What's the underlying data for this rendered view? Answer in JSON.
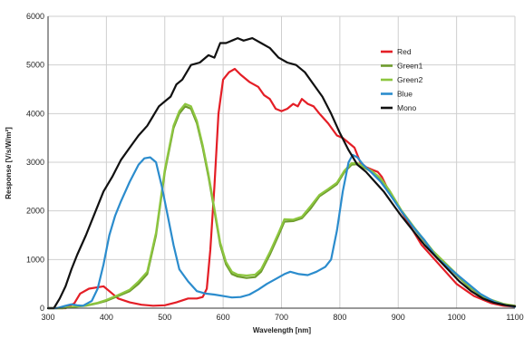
{
  "chart_data": {
    "type": "line",
    "title": "",
    "xlabel": "Wavelength [nm]",
    "ylabel": "Response [V/s/W/m²]",
    "xlim": [
      300,
      1100
    ],
    "ylim": [
      0,
      6000
    ],
    "x_ticks": [
      300,
      400,
      500,
      600,
      700,
      800,
      900,
      1000,
      1100
    ],
    "y_ticks": [
      0,
      1000,
      2000,
      3000,
      4000,
      5000,
      6000
    ],
    "grid": true,
    "legend_position": "top-right",
    "series": [
      {
        "name": "Red",
        "color": "#e41e26",
        "points": [
          [
            300,
            0
          ],
          [
            330,
            0
          ],
          [
            345,
            100
          ],
          [
            355,
            300
          ],
          [
            370,
            400
          ],
          [
            385,
            430
          ],
          [
            395,
            450
          ],
          [
            405,
            350
          ],
          [
            420,
            200
          ],
          [
            440,
            120
          ],
          [
            460,
            70
          ],
          [
            480,
            50
          ],
          [
            500,
            60
          ],
          [
            520,
            120
          ],
          [
            540,
            200
          ],
          [
            555,
            200
          ],
          [
            565,
            230
          ],
          [
            572,
            400
          ],
          [
            578,
            1200
          ],
          [
            585,
            2500
          ],
          [
            592,
            4000
          ],
          [
            600,
            4700
          ],
          [
            610,
            4850
          ],
          [
            620,
            4920
          ],
          [
            630,
            4800
          ],
          [
            645,
            4650
          ],
          [
            660,
            4550
          ],
          [
            670,
            4380
          ],
          [
            680,
            4300
          ],
          [
            690,
            4100
          ],
          [
            700,
            4050
          ],
          [
            710,
            4100
          ],
          [
            720,
            4200
          ],
          [
            728,
            4150
          ],
          [
            735,
            4300
          ],
          [
            745,
            4200
          ],
          [
            755,
            4150
          ],
          [
            765,
            4000
          ],
          [
            780,
            3800
          ],
          [
            795,
            3550
          ],
          [
            805,
            3500
          ],
          [
            815,
            3400
          ],
          [
            825,
            3300
          ],
          [
            835,
            3000
          ],
          [
            845,
            2900
          ],
          [
            855,
            2850
          ],
          [
            865,
            2800
          ],
          [
            872,
            2700
          ],
          [
            880,
            2500
          ],
          [
            895,
            2200
          ],
          [
            915,
            1800
          ],
          [
            940,
            1300
          ],
          [
            970,
            900
          ],
          [
            1000,
            500
          ],
          [
            1030,
            250
          ],
          [
            1060,
            100
          ],
          [
            1080,
            50
          ],
          [
            1100,
            30
          ]
        ]
      },
      {
        "name": "Green1",
        "color": "#6e9c2d",
        "points": [
          [
            300,
            0
          ],
          [
            325,
            0
          ],
          [
            345,
            30
          ],
          [
            365,
            50
          ],
          [
            385,
            100
          ],
          [
            400,
            150
          ],
          [
            420,
            250
          ],
          [
            440,
            350
          ],
          [
            455,
            500
          ],
          [
            470,
            700
          ],
          [
            485,
            1500
          ],
          [
            500,
            2800
          ],
          [
            515,
            3700
          ],
          [
            525,
            4000
          ],
          [
            535,
            4150
          ],
          [
            545,
            4100
          ],
          [
            555,
            3800
          ],
          [
            565,
            3300
          ],
          [
            575,
            2700
          ],
          [
            585,
            2000
          ],
          [
            595,
            1300
          ],
          [
            605,
            900
          ],
          [
            615,
            700
          ],
          [
            625,
            650
          ],
          [
            640,
            620
          ],
          [
            655,
            640
          ],
          [
            665,
            750
          ],
          [
            680,
            1100
          ],
          [
            695,
            1500
          ],
          [
            705,
            1780
          ],
          [
            720,
            1790
          ],
          [
            735,
            1850
          ],
          [
            750,
            2050
          ],
          [
            765,
            2300
          ],
          [
            780,
            2420
          ],
          [
            795,
            2550
          ],
          [
            808,
            2800
          ],
          [
            820,
            2950
          ],
          [
            830,
            2960
          ],
          [
            840,
            2900
          ],
          [
            855,
            2800
          ],
          [
            870,
            2650
          ],
          [
            885,
            2400
          ],
          [
            905,
            2000
          ],
          [
            930,
            1600
          ],
          [
            960,
            1150
          ],
          [
            990,
            800
          ],
          [
            1020,
            450
          ],
          [
            1050,
            200
          ],
          [
            1080,
            80
          ],
          [
            1100,
            40
          ]
        ]
      },
      {
        "name": "Green2",
        "color": "#8dc63f",
        "points": [
          [
            300,
            0
          ],
          [
            325,
            0
          ],
          [
            345,
            30
          ],
          [
            365,
            60
          ],
          [
            385,
            110
          ],
          [
            400,
            170
          ],
          [
            420,
            270
          ],
          [
            440,
            380
          ],
          [
            455,
            550
          ],
          [
            470,
            750
          ],
          [
            485,
            1550
          ],
          [
            500,
            2850
          ],
          [
            515,
            3750
          ],
          [
            525,
            4050
          ],
          [
            535,
            4200
          ],
          [
            545,
            4150
          ],
          [
            555,
            3850
          ],
          [
            565,
            3350
          ],
          [
            575,
            2750
          ],
          [
            585,
            2050
          ],
          [
            595,
            1350
          ],
          [
            605,
            950
          ],
          [
            615,
            750
          ],
          [
            625,
            690
          ],
          [
            640,
            670
          ],
          [
            655,
            690
          ],
          [
            665,
            800
          ],
          [
            680,
            1150
          ],
          [
            695,
            1550
          ],
          [
            705,
            1830
          ],
          [
            720,
            1820
          ],
          [
            735,
            1880
          ],
          [
            750,
            2100
          ],
          [
            765,
            2330
          ],
          [
            780,
            2450
          ],
          [
            795,
            2580
          ],
          [
            808,
            2830
          ],
          [
            820,
            2980
          ],
          [
            830,
            2980
          ],
          [
            840,
            2920
          ],
          [
            855,
            2820
          ],
          [
            870,
            2670
          ],
          [
            885,
            2420
          ],
          [
            905,
            2020
          ],
          [
            930,
            1620
          ],
          [
            960,
            1170
          ],
          [
            990,
            820
          ],
          [
            1020,
            470
          ],
          [
            1050,
            210
          ],
          [
            1080,
            90
          ],
          [
            1100,
            50
          ]
        ]
      },
      {
        "name": "Blue",
        "color": "#2b8ccd",
        "points": [
          [
            300,
            0
          ],
          [
            315,
            0
          ],
          [
            330,
            50
          ],
          [
            340,
            80
          ],
          [
            350,
            60
          ],
          [
            360,
            50
          ],
          [
            375,
            150
          ],
          [
            385,
            400
          ],
          [
            395,
            900
          ],
          [
            405,
            1500
          ],
          [
            415,
            1900
          ],
          [
            425,
            2200
          ],
          [
            440,
            2600
          ],
          [
            455,
            2950
          ],
          [
            465,
            3080
          ],
          [
            475,
            3100
          ],
          [
            485,
            3000
          ],
          [
            495,
            2500
          ],
          [
            505,
            1900
          ],
          [
            515,
            1300
          ],
          [
            525,
            800
          ],
          [
            540,
            550
          ],
          [
            555,
            350
          ],
          [
            570,
            300
          ],
          [
            585,
            280
          ],
          [
            600,
            250
          ],
          [
            615,
            220
          ],
          [
            630,
            230
          ],
          [
            645,
            280
          ],
          [
            660,
            380
          ],
          [
            675,
            500
          ],
          [
            690,
            600
          ],
          [
            705,
            700
          ],
          [
            715,
            750
          ],
          [
            730,
            700
          ],
          [
            745,
            680
          ],
          [
            760,
            750
          ],
          [
            775,
            850
          ],
          [
            785,
            1000
          ],
          [
            795,
            1600
          ],
          [
            805,
            2400
          ],
          [
            815,
            3000
          ],
          [
            822,
            3150
          ],
          [
            830,
            3100
          ],
          [
            840,
            2950
          ],
          [
            855,
            2780
          ],
          [
            870,
            2600
          ],
          [
            885,
            2350
          ],
          [
            905,
            2000
          ],
          [
            925,
            1680
          ],
          [
            945,
            1400
          ],
          [
            965,
            1050
          ],
          [
            990,
            800
          ],
          [
            1015,
            550
          ],
          [
            1040,
            300
          ],
          [
            1065,
            130
          ],
          [
            1085,
            60
          ],
          [
            1100,
            30
          ]
        ]
      },
      {
        "name": "Mono",
        "color": "#111111",
        "points": [
          [
            300,
            0
          ],
          [
            310,
            0
          ],
          [
            320,
            200
          ],
          [
            330,
            450
          ],
          [
            340,
            800
          ],
          [
            350,
            1100
          ],
          [
            365,
            1500
          ],
          [
            380,
            1950
          ],
          [
            395,
            2400
          ],
          [
            410,
            2700
          ],
          [
            425,
            3050
          ],
          [
            440,
            3300
          ],
          [
            455,
            3550
          ],
          [
            470,
            3750
          ],
          [
            480,
            3950
          ],
          [
            490,
            4150
          ],
          [
            500,
            4250
          ],
          [
            510,
            4350
          ],
          [
            520,
            4600
          ],
          [
            530,
            4700
          ],
          [
            545,
            5000
          ],
          [
            560,
            5050
          ],
          [
            575,
            5200
          ],
          [
            585,
            5150
          ],
          [
            595,
            5450
          ],
          [
            605,
            5450
          ],
          [
            615,
            5500
          ],
          [
            625,
            5550
          ],
          [
            635,
            5500
          ],
          [
            650,
            5550
          ],
          [
            665,
            5450
          ],
          [
            680,
            5350
          ],
          [
            695,
            5150
          ],
          [
            710,
            5050
          ],
          [
            725,
            5000
          ],
          [
            740,
            4850
          ],
          [
            755,
            4600
          ],
          [
            770,
            4350
          ],
          [
            785,
            4000
          ],
          [
            800,
            3600
          ],
          [
            815,
            3250
          ],
          [
            830,
            2950
          ],
          [
            845,
            2800
          ],
          [
            860,
            2600
          ],
          [
            875,
            2400
          ],
          [
            890,
            2150
          ],
          [
            905,
            1900
          ],
          [
            925,
            1600
          ],
          [
            945,
            1300
          ],
          [
            965,
            1050
          ],
          [
            985,
            800
          ],
          [
            1005,
            550
          ],
          [
            1025,
            350
          ],
          [
            1045,
            200
          ],
          [
            1065,
            110
          ],
          [
            1085,
            60
          ],
          [
            1100,
            40
          ]
        ]
      }
    ]
  }
}
